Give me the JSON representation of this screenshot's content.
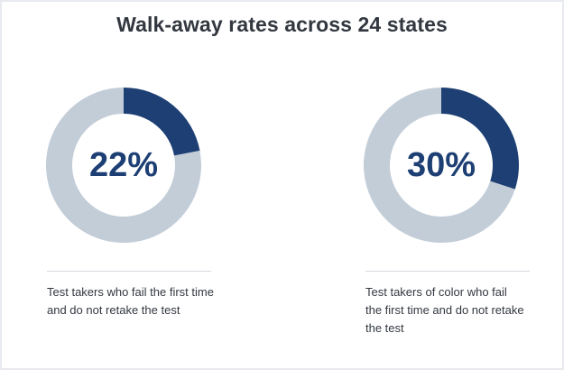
{
  "title": "Walk-away rates across 24 states",
  "colors": {
    "filled": "#1d3f73",
    "remainder": "#c3cdd8",
    "text": "#333840",
    "divider": "#d5d9de"
  },
  "chart_data": [
    {
      "type": "pie",
      "variant": "donut",
      "value_percent": 22,
      "center_label": "22%",
      "caption_lines": [
        "Test takers who fail the first time",
        "and do not retake the test"
      ]
    },
    {
      "type": "pie",
      "variant": "donut",
      "value_percent": 30,
      "center_label": "30%",
      "caption_lines": [
        "Test takers of color who fail",
        "the first time and do not retake",
        "the test"
      ]
    }
  ]
}
